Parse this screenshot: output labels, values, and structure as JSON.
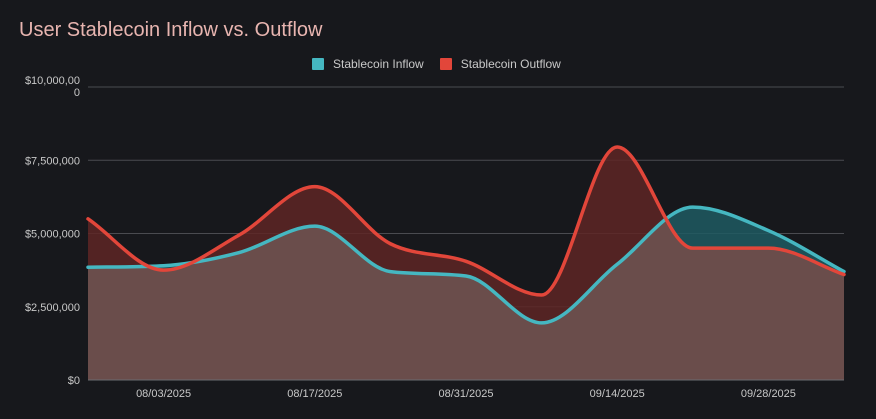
{
  "chart_data": {
    "type": "area",
    "title": "User Stablecoin Inflow vs. Outflow",
    "xlabel": "",
    "ylabel": "",
    "ylim": [
      0,
      10000000
    ],
    "yticks": [
      {
        "value": 0,
        "label": "$0"
      },
      {
        "value": 2500000,
        "label": "$2,500,000"
      },
      {
        "value": 5000000,
        "label": "$5,000,000"
      },
      {
        "value": 7500000,
        "label": "$7,500,000"
      },
      {
        "value": 10000000,
        "label": "$10,000,000"
      }
    ],
    "xlim": [
      0,
      10
    ],
    "xticks": [
      {
        "value": 1,
        "label": "08/03/2025"
      },
      {
        "value": 3,
        "label": "08/17/2025"
      },
      {
        "value": 5,
        "label": "08/31/2025"
      },
      {
        "value": 7,
        "label": "09/14/2025"
      },
      {
        "value": 9,
        "label": "09/28/2025"
      }
    ],
    "legend_position": "top-center",
    "grid": true,
    "series": [
      {
        "name": "Stablecoin Inflow",
        "color": "#45b7c1",
        "fill": "#1f5a62",
        "x": [
          0,
          1,
          2,
          3,
          4,
          5,
          6,
          7,
          8,
          9,
          10
        ],
        "values": [
          3850000,
          3900000,
          4350000,
          5250000,
          3700000,
          3550000,
          1950000,
          3950000,
          5900000,
          5100000,
          3700000
        ]
      },
      {
        "name": "Stablecoin Outflow",
        "color": "#e2463a",
        "fill": "#5e2624",
        "x": [
          0,
          1,
          2,
          3,
          4,
          5,
          6,
          7,
          8,
          9,
          10
        ],
        "values": [
          5500000,
          3750000,
          4950000,
          6600000,
          4650000,
          4050000,
          2900000,
          7950000,
          4500000,
          4500000,
          3600000
        ]
      }
    ]
  }
}
